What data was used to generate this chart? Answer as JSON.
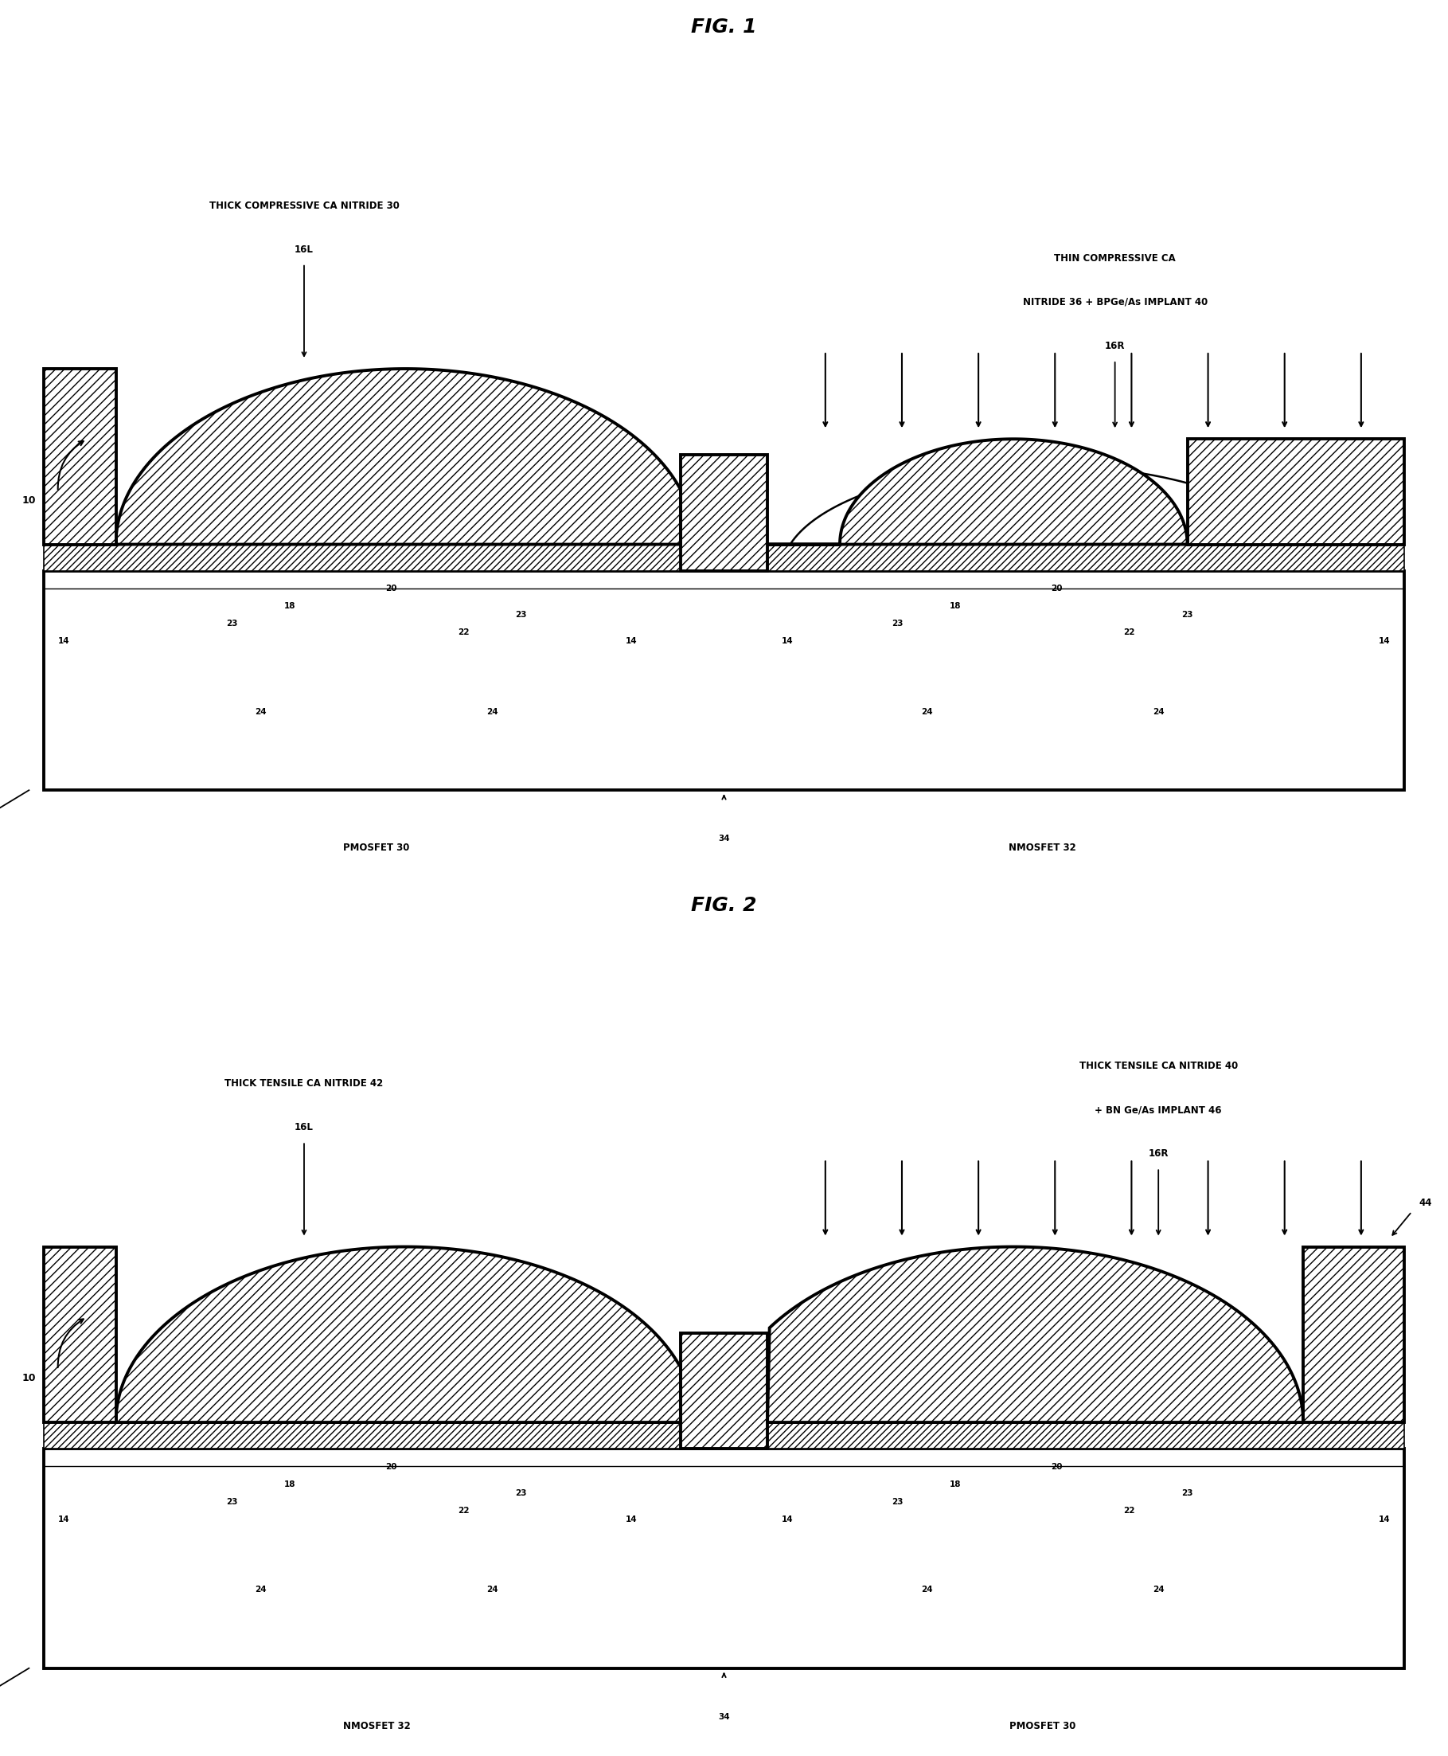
{
  "fig1_title": "FIG. 1",
  "fig2_title": "FIG. 2",
  "fig1_left_label_line1": "THICK COMPRESSIVE CA NITRIDE 30",
  "fig1_right_label_line1": "THIN COMPRESSIVE CA",
  "fig1_right_label_line2": "NITRIDE 36 + BPGe/As IMPLANT 40",
  "fig1_left_ref": "16L",
  "fig1_right_ref": "16R",
  "fig1_left_device": "PMOSFET 30",
  "fig1_right_device": "NMOSFET 32",
  "fig2_left_label_line1": "THICK TENSILE CA NITRIDE 42",
  "fig2_right_label_line1": "THICK TENSILE CA NITRIDE 40",
  "fig2_right_label_line2": "+ BN Ge/As IMPLANT 46",
  "fig2_left_ref": "16L",
  "fig2_right_ref": "16R",
  "fig2_extra_ref": "44",
  "fig2_left_device": "NMOSFET 32",
  "fig2_right_device": "PMOSFET 30"
}
